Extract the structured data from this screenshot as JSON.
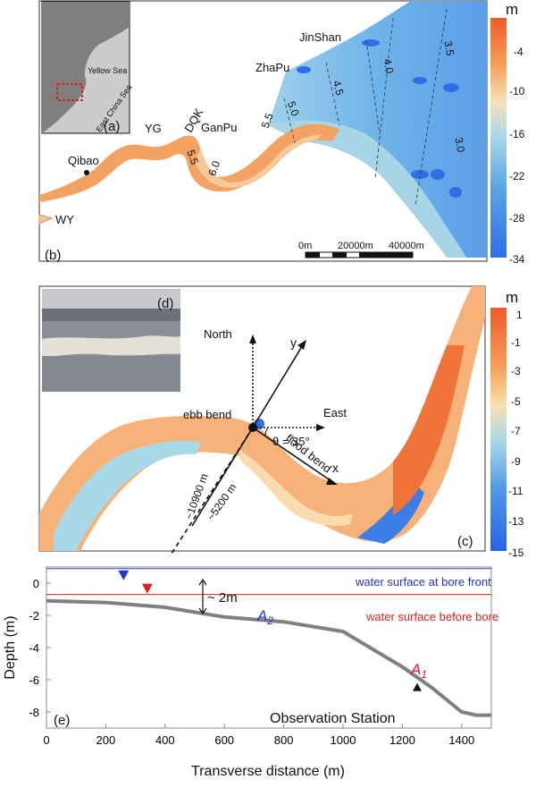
{
  "panel_a": {
    "label": "(a)",
    "yellow_sea": "Yellow Sea",
    "east_china_sea": "East China Sea"
  },
  "panel_b": {
    "label": "(b)",
    "unit": "m",
    "colorbar_ticks": [
      "-4",
      "-10",
      "-16",
      "-22",
      "-28",
      "-34"
    ],
    "places": {
      "jinshan": "JinShan",
      "zhapu": "ZhaPu",
      "ganpu": "GanPu",
      "dqk": "DQK",
      "yg": "YG",
      "qibao": "Qibao",
      "wy": "WY"
    },
    "contours": [
      "5.5",
      "6.0",
      "5.5",
      "5.0",
      "4.5",
      "4.0",
      "3.5",
      "3.0",
      "5.0"
    ],
    "scalebar": [
      "0m",
      "20000m",
      "40000m"
    ]
  },
  "panel_c": {
    "label": "(c)",
    "unit": "m",
    "colorbar_ticks": [
      "1",
      "-1",
      "-3",
      "-5",
      "-7",
      "-9",
      "-11",
      "-13",
      "-15"
    ],
    "north": "North",
    "east": "East",
    "y_axis": "y",
    "x_axis": "x",
    "theta": "θ = 35°",
    "ebb_bend": "ebb bend",
    "flood_bend": "flood bend",
    "dist1": "~10900 m",
    "dist2": "~5200 m"
  },
  "panel_d": {
    "label": "(d)"
  },
  "panel_e": {
    "label": "(e)",
    "xlabel": "Transverse distance (m)",
    "ylabel": "Depth (m)",
    "legend_blue": "water surface at bore front",
    "legend_red": "water surface before bore",
    "a2": "A",
    "a2_sub": "2",
    "a1": "A",
    "a1_sub": "1",
    "height": "~ 2m",
    "station": "Observation Station",
    "chart_data": {
      "type": "line",
      "xlim": [
        0,
        1500
      ],
      "ylim": [
        -9,
        1
      ],
      "xticks": [
        0,
        200,
        400,
        600,
        800,
        1000,
        1200,
        1400
      ],
      "yticks": [
        0,
        -2,
        -4,
        -6,
        -8
      ],
      "series": [
        {
          "x": [
            0,
            200,
            400,
            600,
            800,
            1000,
            1200,
            1300,
            1400,
            1450,
            1500
          ],
          "y": [
            -1.1,
            -1.2,
            -1.5,
            -2.1,
            -2.4,
            -3.0,
            -5.2,
            -6.5,
            -8.0,
            -8.2,
            -8.2
          ]
        }
      ],
      "bore_front_level": 0.9,
      "before_bore_level": -0.7,
      "blue_marker_x": 260,
      "red_marker_x": 340,
      "station_x": 1250
    }
  }
}
